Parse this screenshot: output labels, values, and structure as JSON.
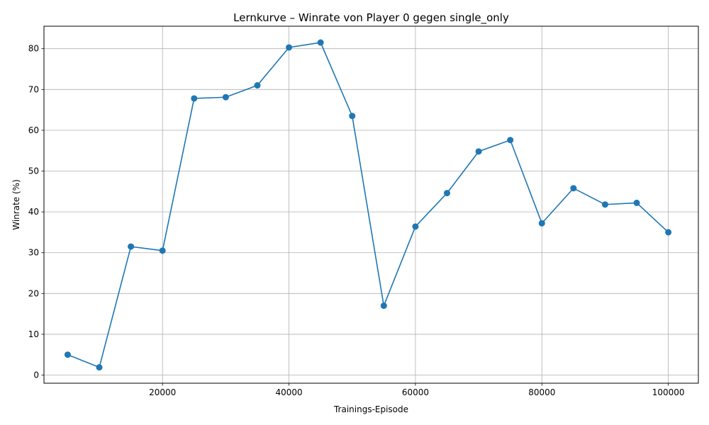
{
  "chart_data": {
    "type": "line",
    "title": "Lernkurve – Winrate von Player 0 gegen single_only",
    "xlabel": "Trainings-Episode",
    "ylabel": "Winrate (%)",
    "xlim": [
      1250,
      104750
    ],
    "ylim": [
      -1.99,
      85.5
    ],
    "xticks": [
      20000,
      40000,
      60000,
      80000,
      100000
    ],
    "yticks": [
      0,
      10,
      20,
      30,
      40,
      50,
      60,
      70,
      80
    ],
    "grid": true,
    "series": [
      {
        "color": "#1f77b4",
        "marker": "circle",
        "x": [
          5000,
          10000,
          15000,
          20000,
          25000,
          30000,
          35000,
          40000,
          45000,
          50000,
          55000,
          60000,
          65000,
          70000,
          75000,
          80000,
          85000,
          90000,
          95000,
          100000
        ],
        "y": [
          5.0,
          1.9,
          31.5,
          30.5,
          67.8,
          68.1,
          71.0,
          80.3,
          81.5,
          63.5,
          17.0,
          36.4,
          44.6,
          54.8,
          57.6,
          37.2,
          45.8,
          41.8,
          42.2,
          35.0
        ]
      }
    ]
  }
}
